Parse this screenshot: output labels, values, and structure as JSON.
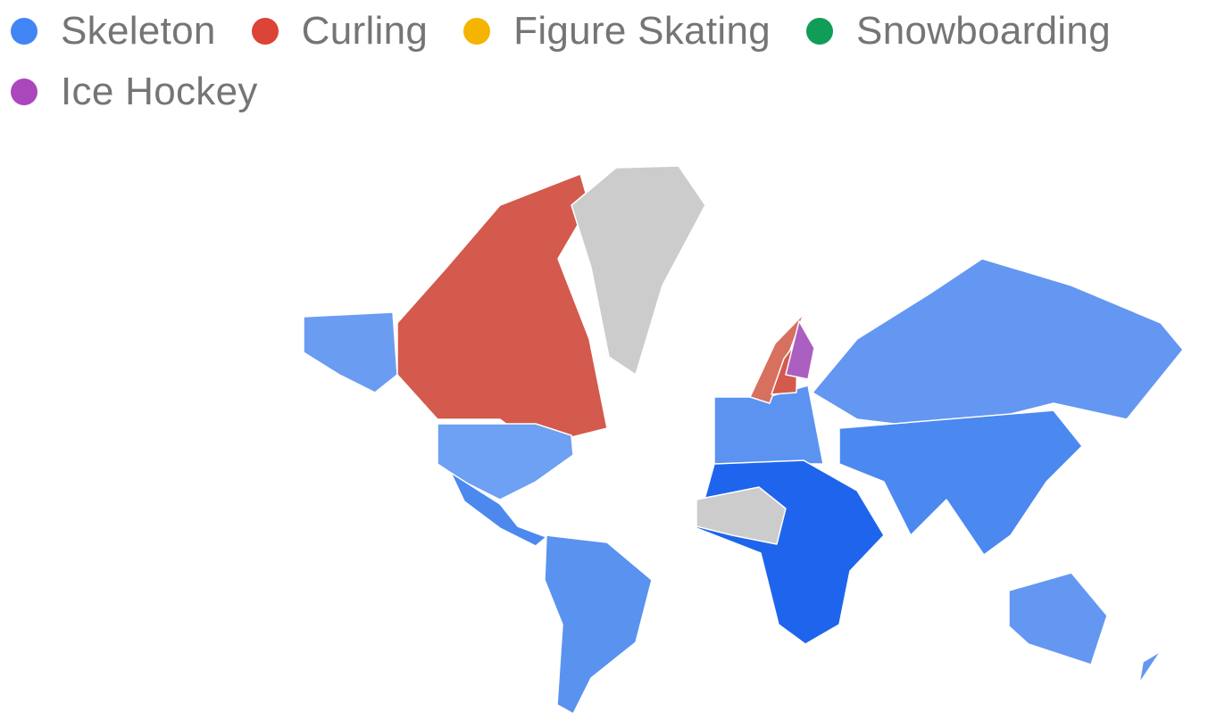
{
  "legend": [
    {
      "label": "Skeleton",
      "color": "#4285f4"
    },
    {
      "label": "Curling",
      "color": "#db4437"
    },
    {
      "label": "Figure Skating",
      "color": "#f4b400"
    },
    {
      "label": "Snowboarding",
      "color": "#0f9d58"
    },
    {
      "label": "Ice Hockey",
      "color": "#ab47bc"
    }
  ],
  "map": {
    "no_data_color": "#cccccc",
    "regions": [
      {
        "id": "alaska",
        "sport": "Skeleton",
        "shade": "#6a9cf2"
      },
      {
        "id": "canada",
        "sport": "Curling",
        "shade": "#d35a4c"
      },
      {
        "id": "usa",
        "sport": "Skeleton",
        "shade": "#6ea0f3"
      },
      {
        "id": "central-america",
        "sport": "Skeleton",
        "shade": "#4d88ef"
      },
      {
        "id": "south-america",
        "sport": "Skeleton",
        "shade": "#5a92ef"
      },
      {
        "id": "greenland",
        "sport": null
      },
      {
        "id": "europe",
        "sport": "Skeleton",
        "shade": "#5c93f0"
      },
      {
        "id": "norway",
        "sport": "Curling",
        "shade": "#d8705f"
      },
      {
        "id": "sweden",
        "sport": "Curling",
        "shade": "#d35a4c"
      },
      {
        "id": "finland",
        "sport": "Ice Hockey",
        "shade": "#ab5fc0"
      },
      {
        "id": "russia",
        "sport": "Skeleton",
        "shade": "#6397f1"
      },
      {
        "id": "asia",
        "sport": "Skeleton",
        "shade": "#4b88f0"
      },
      {
        "id": "africa",
        "sport": "Skeleton",
        "shade": "#1f64ec"
      },
      {
        "id": "west-africa",
        "sport": null
      },
      {
        "id": "australia",
        "sport": "Skeleton",
        "shade": "#6397f1"
      },
      {
        "id": "new-zealand",
        "sport": "Skeleton",
        "shade": "#6397f1"
      }
    ]
  }
}
